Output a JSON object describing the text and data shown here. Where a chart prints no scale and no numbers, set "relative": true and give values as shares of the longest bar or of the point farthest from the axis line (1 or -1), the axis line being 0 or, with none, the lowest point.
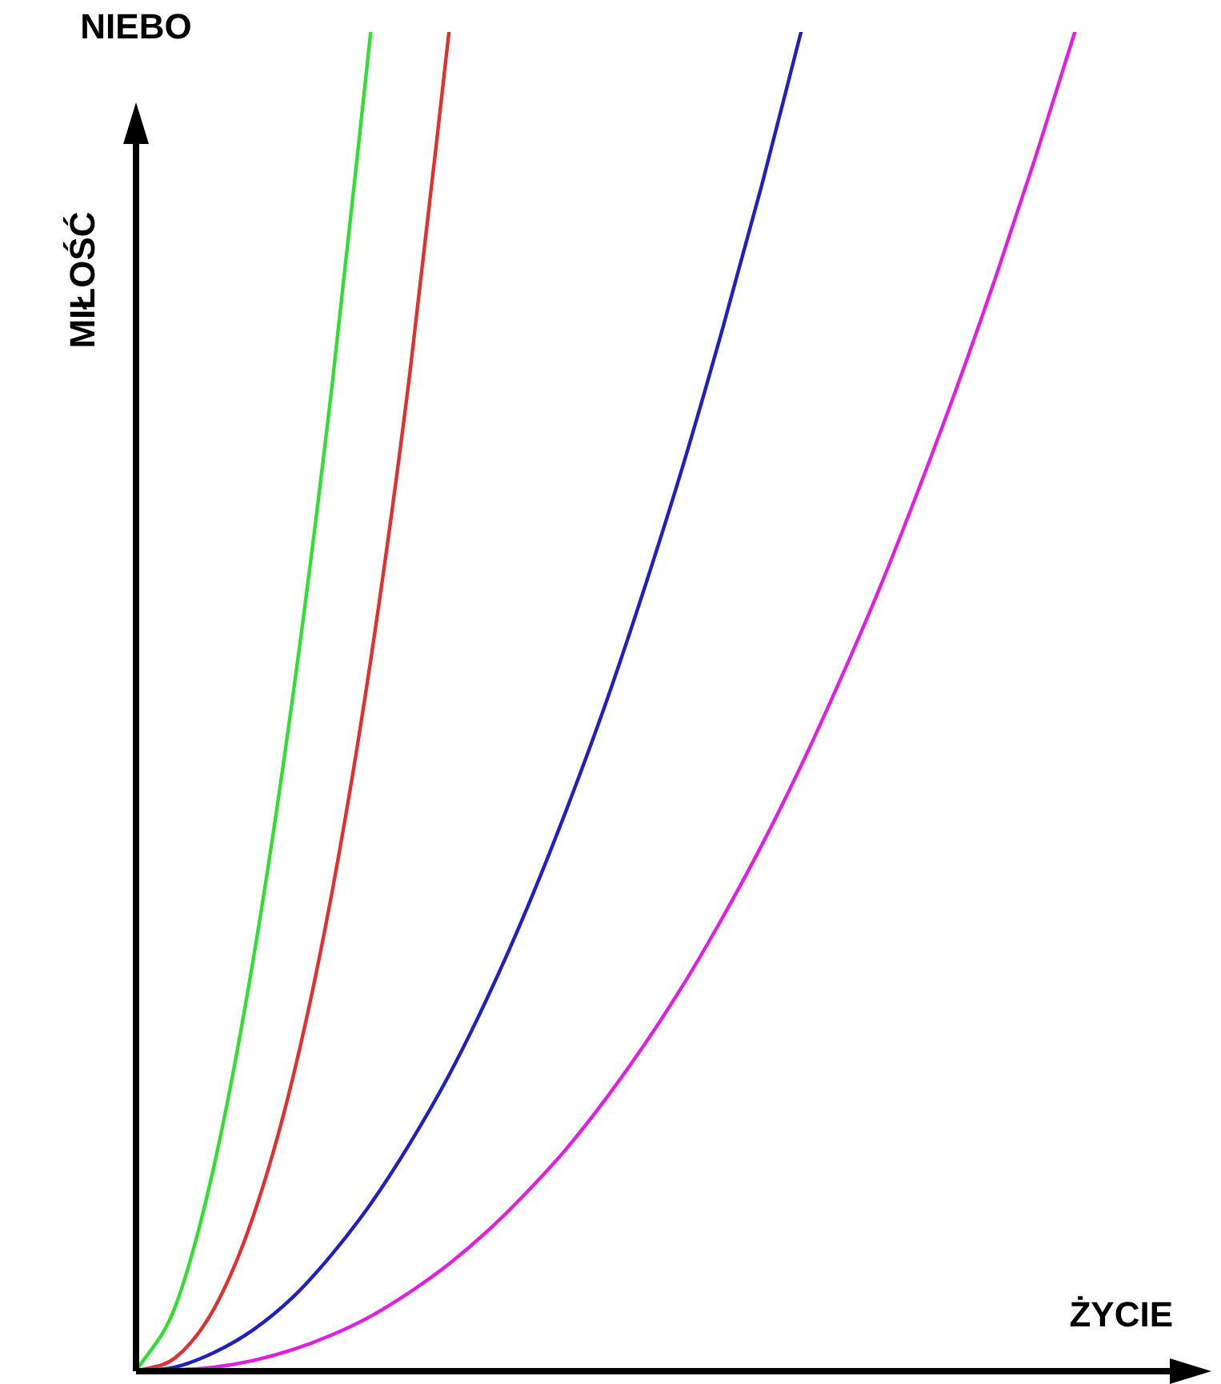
{
  "chart_data": {
    "type": "line",
    "relative": true,
    "xlabel": "ŻYCIE",
    "ylabel": "MIŁOŚĆ",
    "annotations": [
      "NIEBO"
    ],
    "legend": false,
    "marker": "none",
    "line_style": "solid",
    "categories": [
      null,
      null,
      null,
      null,
      null,
      null,
      null,
      null,
      null,
      null,
      null,
      null,
      null,
      null,
      null,
      null,
      null,
      null,
      null,
      null,
      null,
      null,
      null,
      null,
      null,
      null,
      null,
      null
    ],
    "series": [
      {
        "color": "#33dd33",
        "values": [
          0,
          0.048,
          0.154,
          0.308,
          0.502,
          0.733,
          1,
          null,
          null,
          null,
          null,
          null,
          null,
          null,
          null,
          null,
          null,
          null,
          null,
          null,
          null,
          null,
          null,
          null,
          null,
          null,
          null,
          null
        ]
      },
      {
        "color": "#e03030",
        "values": [
          0,
          0.01,
          0.047,
          0.116,
          0.218,
          0.356,
          0.531,
          0.745,
          1,
          null,
          null,
          null,
          null,
          null,
          null,
          null,
          null,
          null,
          null,
          null,
          null,
          null,
          null,
          null,
          null,
          null,
          null,
          null
        ]
      },
      {
        "color": "#2020c0",
        "values": [
          0,
          0.003,
          0.014,
          0.031,
          0.055,
          0.087,
          0.125,
          0.17,
          0.221,
          0.28,
          0.346,
          0.419,
          0.498,
          0.585,
          0.678,
          0.779,
          0.886,
          1,
          null,
          null,
          null,
          null,
          null,
          null,
          null,
          null,
          null,
          null
        ]
      },
      {
        "color": "#e020e0",
        "values": [
          0,
          0.001,
          0.003,
          0.008,
          0.016,
          0.027,
          0.041,
          0.059,
          0.08,
          0.105,
          0.134,
          0.166,
          0.203,
          0.244,
          0.289,
          0.339,
          0.393,
          0.452,
          0.516,
          0.584,
          0.658,
          0.736,
          0.819,
          0.907,
          1,
          null,
          null,
          null
        ]
      }
    ]
  }
}
